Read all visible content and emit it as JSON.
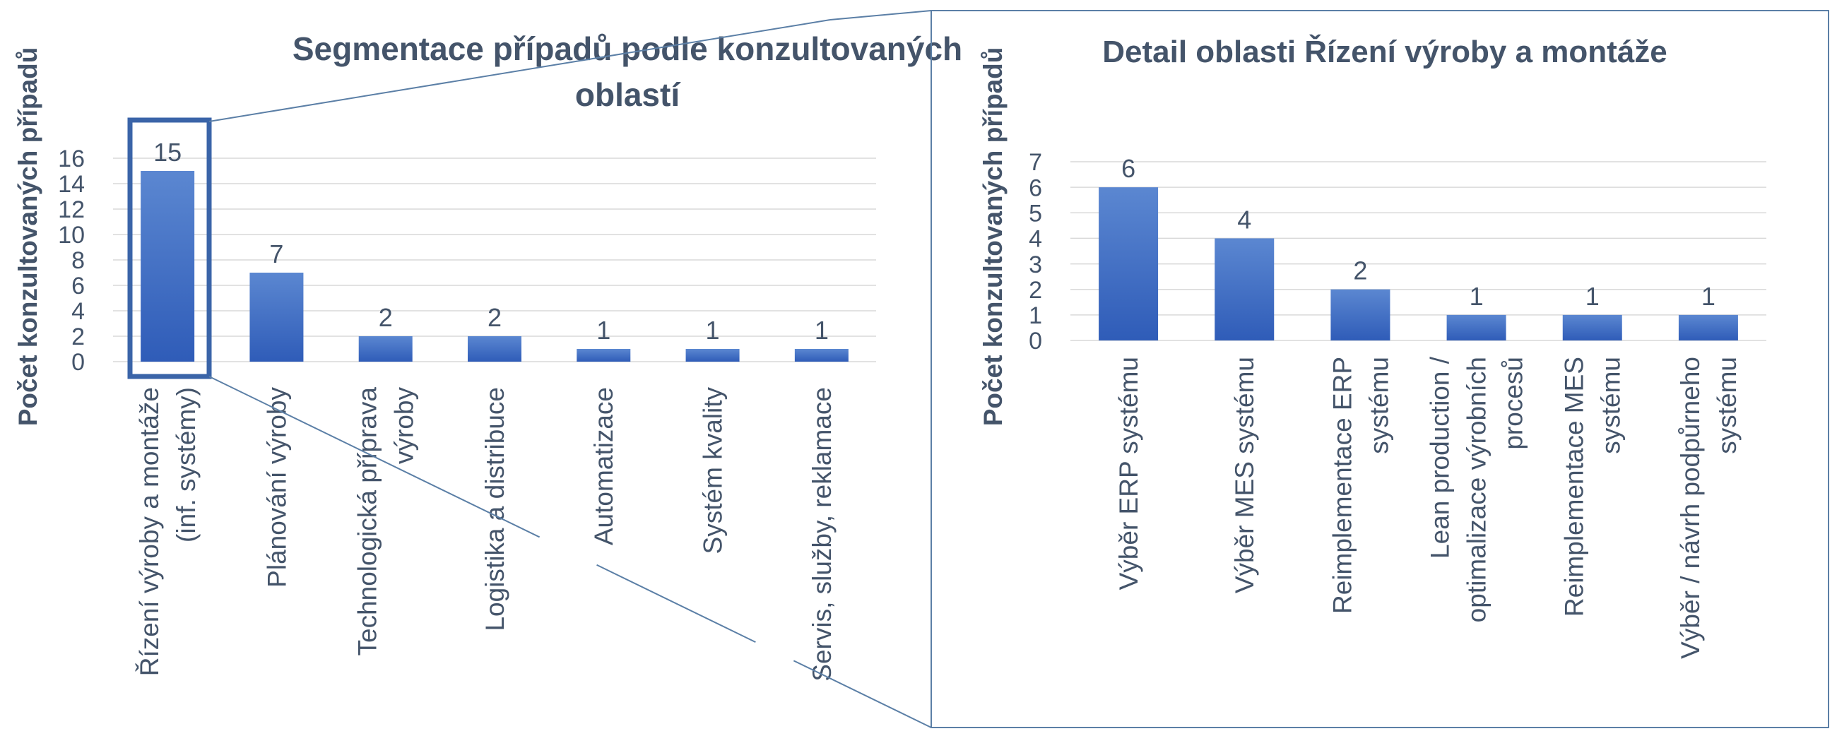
{
  "colors": {
    "bar_top": "#5b87d1",
    "bar_bottom": "#2f5cb8",
    "text": "#44546a",
    "grid": "#d9d9d9",
    "frame": "#5b7fa6",
    "highlight": "#3a64a8"
  },
  "chart_data": [
    {
      "type": "bar",
      "title": "Segmentace případů podle konzultovaných oblastí",
      "title_lines": [
        "Segmentace případů podle konzultovaných",
        "oblastí"
      ],
      "ylabel": "Počet konzultovaných případů",
      "xlabel": "",
      "ylim": [
        0,
        16
      ],
      "yticks": [
        0,
        2,
        4,
        6,
        8,
        10,
        12,
        14,
        16
      ],
      "grid": true,
      "legend": "none",
      "categories": [
        "Řízení výroby a montáže (inf. systémy)",
        "Plánování výroby",
        "Technologická příprava výroby",
        "Logistika a distribuce",
        "Automatizace",
        "Systém kvality",
        "Servis, služby, reklamace"
      ],
      "category_lines": [
        [
          "Řízení výroby a montáže",
          "(inf. systémy)"
        ],
        [
          "Plánování výroby"
        ],
        [
          "Technologická příprava",
          "výroby"
        ],
        [
          "Logistika a distribuce"
        ],
        [
          "Automatizace"
        ],
        [
          "Systém kvality"
        ],
        [
          "Servis, služby, reklamace"
        ]
      ],
      "values": [
        15,
        7,
        2,
        2,
        1,
        1,
        1
      ],
      "highlighted_category": "Řízení výroby a montáže (inf. systémy)"
    },
    {
      "type": "bar",
      "title": "Detail oblasti Řízení výroby a montáže",
      "title_lines": [
        "Detail oblasti Řízení výroby a montáže"
      ],
      "ylabel": "Počet konzultovaných případů",
      "xlabel": "",
      "ylim": [
        0,
        7
      ],
      "yticks": [
        0,
        1,
        2,
        3,
        4,
        5,
        6,
        7
      ],
      "grid": true,
      "legend": "none",
      "categories": [
        "Výběr ERP systému",
        "Výběr MES systému",
        "Reimplementace ERP systému",
        "Lean production / optimalizace výrobních procesů",
        "Reimplementace MES systému",
        "Výběr / návrh podpůrneho systému"
      ],
      "category_lines": [
        [
          "Výběr ERP systému"
        ],
        [
          "Výběr MES systému"
        ],
        [
          "Reimplementace ERP",
          "systému"
        ],
        [
          "Lean production /",
          "optimalizace výrobních",
          "procesů"
        ],
        [
          "Reimplementace MES",
          "systému"
        ],
        [
          "Výběr / návrh podpůrneho",
          "systému"
        ]
      ],
      "values": [
        6,
        4,
        2,
        1,
        1,
        1
      ]
    }
  ]
}
